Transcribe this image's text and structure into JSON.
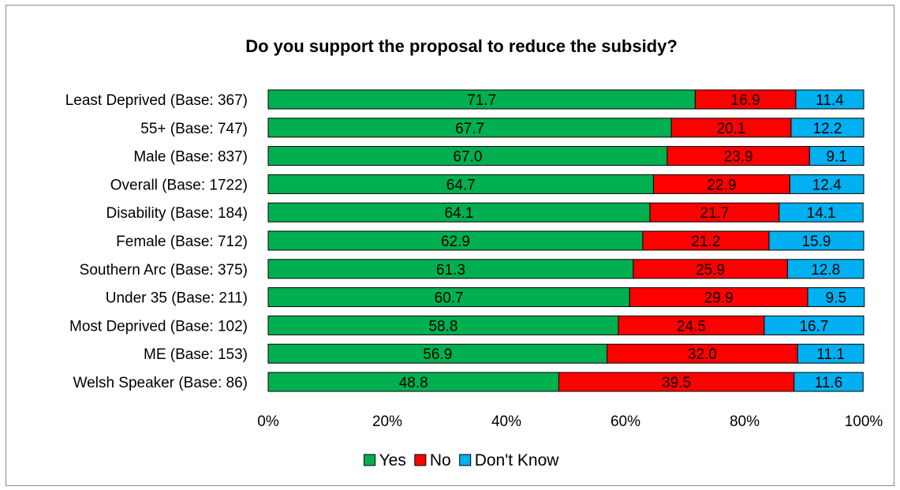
{
  "chart_data": {
    "type": "bar",
    "orientation": "horizontal",
    "stacked": true,
    "title": "Do you support the proposal to reduce the subsidy?",
    "xlabel": "",
    "ylabel": "",
    "xlim": [
      0,
      100
    ],
    "x_ticks": [
      "0%",
      "20%",
      "40%",
      "60%",
      "80%",
      "100%"
    ],
    "grid": false,
    "legend_position": "bottom",
    "categories": [
      "Least Deprived (Base: 367)",
      "55+ (Base: 747)",
      "Male (Base: 837)",
      "Overall (Base: 1722)",
      "Disability (Base: 184)",
      "Female (Base: 712)",
      "Southern Arc (Base: 375)",
      "Under 35 (Base: 211)",
      "Most Deprived (Base: 102)",
      "ME (Base: 153)",
      "Welsh Speaker (Base: 86)"
    ],
    "series": [
      {
        "name": "Yes",
        "color": "#00b050",
        "values": [
          71.7,
          67.7,
          67.0,
          64.7,
          64.1,
          62.9,
          61.3,
          60.7,
          58.8,
          56.9,
          48.8
        ]
      },
      {
        "name": "No",
        "color": "#ff0000",
        "values": [
          16.9,
          20.1,
          23.9,
          22.9,
          21.7,
          21.2,
          25.9,
          29.9,
          24.5,
          32.0,
          39.5
        ]
      },
      {
        "name": "Don't Know",
        "color": "#00b0f0",
        "values": [
          11.4,
          12.2,
          9.1,
          12.4,
          14.1,
          15.9,
          12.8,
          9.5,
          16.7,
          11.1,
          11.6
        ]
      }
    ],
    "data_labels": [
      [
        "71.7",
        "16.9",
        "11.4"
      ],
      [
        "67.7",
        "20.1",
        "12.2"
      ],
      [
        "67.0",
        "23.9",
        "9.1"
      ],
      [
        "64.7",
        "22.9",
        "12.4"
      ],
      [
        "64.1",
        "21.7",
        "14.1"
      ],
      [
        "62.9",
        "21.2",
        "15.9"
      ],
      [
        "61.3",
        "25.9",
        "12.8"
      ],
      [
        "60.7",
        "29.9",
        "9.5"
      ],
      [
        "58.8",
        "24.5",
        "16.7"
      ],
      [
        "56.9",
        "32.0",
        "11.1"
      ],
      [
        "48.8",
        "39.5",
        "11.6"
      ]
    ]
  }
}
